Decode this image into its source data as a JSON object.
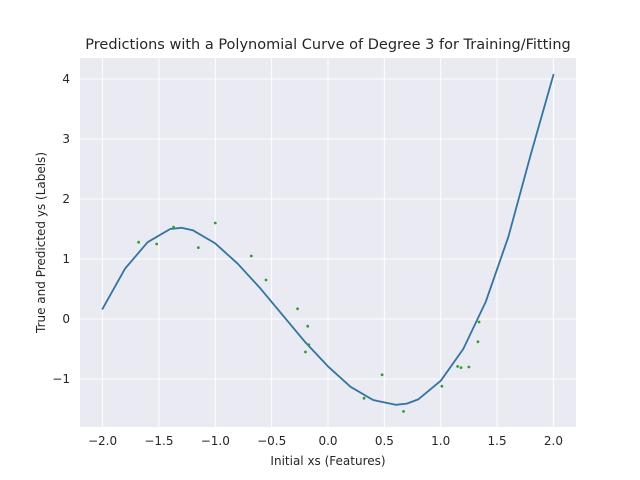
{
  "chart_data": {
    "type": "scatter",
    "title": "Predictions with a Polynomial Curve of Degree 3 for Training/Fitting",
    "xlabel": "Initial xs (Features)",
    "ylabel": "True and Predicted ys (Labels)",
    "xlim": [
      -2.2,
      2.2
    ],
    "ylim": [
      -1.8,
      4.35
    ],
    "xticks": [
      -2.0,
      -1.5,
      -1.0,
      -0.5,
      0.0,
      0.5,
      1.0,
      1.5,
      2.0
    ],
    "xtick_labels": [
      "−2.0",
      "−1.5",
      "−1.0",
      "−0.5",
      "0.0",
      "0.5",
      "1.0",
      "1.5",
      "2.0"
    ],
    "yticks": [
      -1,
      0,
      1,
      2,
      3,
      4
    ],
    "ytick_labels": [
      "−1",
      "0",
      "1",
      "2",
      "3",
      "4"
    ],
    "grid": true,
    "background_color": "#eaeaf2",
    "series": [
      {
        "kind": "line",
        "color": "#3274a1",
        "x": [
          -2.0,
          -1.8,
          -1.6,
          -1.4,
          -1.3,
          -1.2,
          -1.0,
          -0.8,
          -0.6,
          -0.4,
          -0.2,
          0.0,
          0.2,
          0.4,
          0.6,
          0.7,
          0.8,
          1.0,
          1.2,
          1.4,
          1.6,
          1.8,
          2.0
        ],
        "y": [
          0.17,
          0.84,
          1.28,
          1.5,
          1.52,
          1.48,
          1.26,
          0.92,
          0.51,
          0.06,
          -0.39,
          -0.79,
          -1.13,
          -1.35,
          -1.43,
          -1.41,
          -1.34,
          -1.03,
          -0.5,
          0.29,
          1.37,
          2.75,
          4.07
        ]
      },
      {
        "kind": "scatter",
        "color": "#2ca02c",
        "x": [
          -1.68,
          -1.52,
          -1.37,
          -1.15,
          -1.0,
          -0.68,
          -0.55,
          -0.27,
          -0.2,
          -0.18,
          -0.17,
          0.32,
          0.48,
          0.67,
          1.01,
          1.15,
          1.18,
          1.25,
          1.33,
          1.34
        ],
        "y": [
          1.28,
          1.25,
          1.53,
          1.19,
          1.6,
          1.05,
          0.65,
          0.17,
          -0.55,
          -0.12,
          -0.43,
          -1.32,
          -0.93,
          -1.54,
          -1.12,
          -0.79,
          -0.81,
          -0.8,
          -0.38,
          -0.05
        ]
      }
    ]
  }
}
